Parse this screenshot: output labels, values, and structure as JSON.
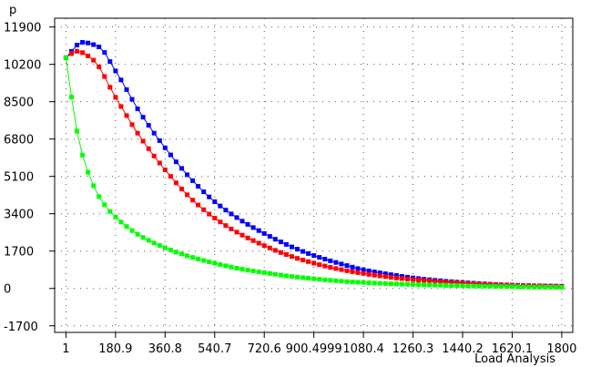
{
  "chart_data": {
    "type": "line",
    "title": "",
    "xlabel": "Load Analysis",
    "ylabel": "p",
    "xlim": [
      -40,
      1840
    ],
    "ylim": [
      -2000,
      12300
    ],
    "x_ticks": [
      1,
      180.9,
      360.8,
      540.7,
      720.6,
      900.4999,
      1080.4,
      1260.3,
      1440.2,
      1620.1,
      1800
    ],
    "x_tick_labels": [
      "1",
      "180.9",
      "360.8",
      "540.7",
      "720.6",
      "900.4999",
      "1080.4",
      "1260.3",
      "1440.2",
      "1620.1",
      "1800"
    ],
    "y_ticks": [
      11900,
      10200,
      8500,
      6800,
      5100,
      3400,
      1700,
      0,
      -1700
    ],
    "y_tick_labels": [
      "11900",
      "10200",
      "8500",
      "6800",
      "5100",
      "3400",
      "1700",
      "0",
      "-1700"
    ],
    "grid": true,
    "legend": "none",
    "series": [
      {
        "color": "#0000ff",
        "x": [
          1,
          60,
          120,
          180.9,
          270,
          360.8,
          450,
          540.7,
          630,
          720.6,
          810,
          900.5,
          990,
          1080.4,
          1170,
          1260.3,
          1350,
          1440.2,
          1530,
          1620.1,
          1710,
          1800
        ],
        "y": [
          10500,
          11200,
          11000,
          9900,
          8000,
          6400,
          5050,
          3950,
          3150,
          2500,
          1950,
          1500,
          1150,
          850,
          650,
          480,
          360,
          270,
          200,
          150,
          120,
          100
        ]
      },
      {
        "color": "#ff0000",
        "x": [
          1,
          40,
          100,
          180.9,
          270,
          360.8,
          450,
          540.7,
          630,
          720.6,
          810,
          900.5,
          990,
          1080.4,
          1170,
          1260.3,
          1350,
          1440.2,
          1530,
          1620.1,
          1710,
          1800
        ],
        "y": [
          10500,
          10800,
          10400,
          8700,
          6900,
          5400,
          4150,
          3200,
          2500,
          1950,
          1500,
          1150,
          880,
          680,
          520,
          400,
          310,
          240,
          180,
          140,
          110,
          90
        ]
      },
      {
        "color": "#00ff00",
        "x": [
          1,
          20,
          50,
          90,
          130,
          180.9,
          270,
          360.8,
          450,
          540.7,
          630,
          720.6,
          810,
          900.5,
          990,
          1080.4,
          1170,
          1260.3,
          1350,
          1440.2,
          1530,
          1620.1,
          1710,
          1800
        ],
        "y": [
          10500,
          8800,
          6600,
          5000,
          4000,
          3250,
          2400,
          1850,
          1450,
          1150,
          900,
          720,
          560,
          440,
          340,
          270,
          220,
          180,
          150,
          120,
          100,
          80,
          60,
          50
        ]
      }
    ]
  }
}
